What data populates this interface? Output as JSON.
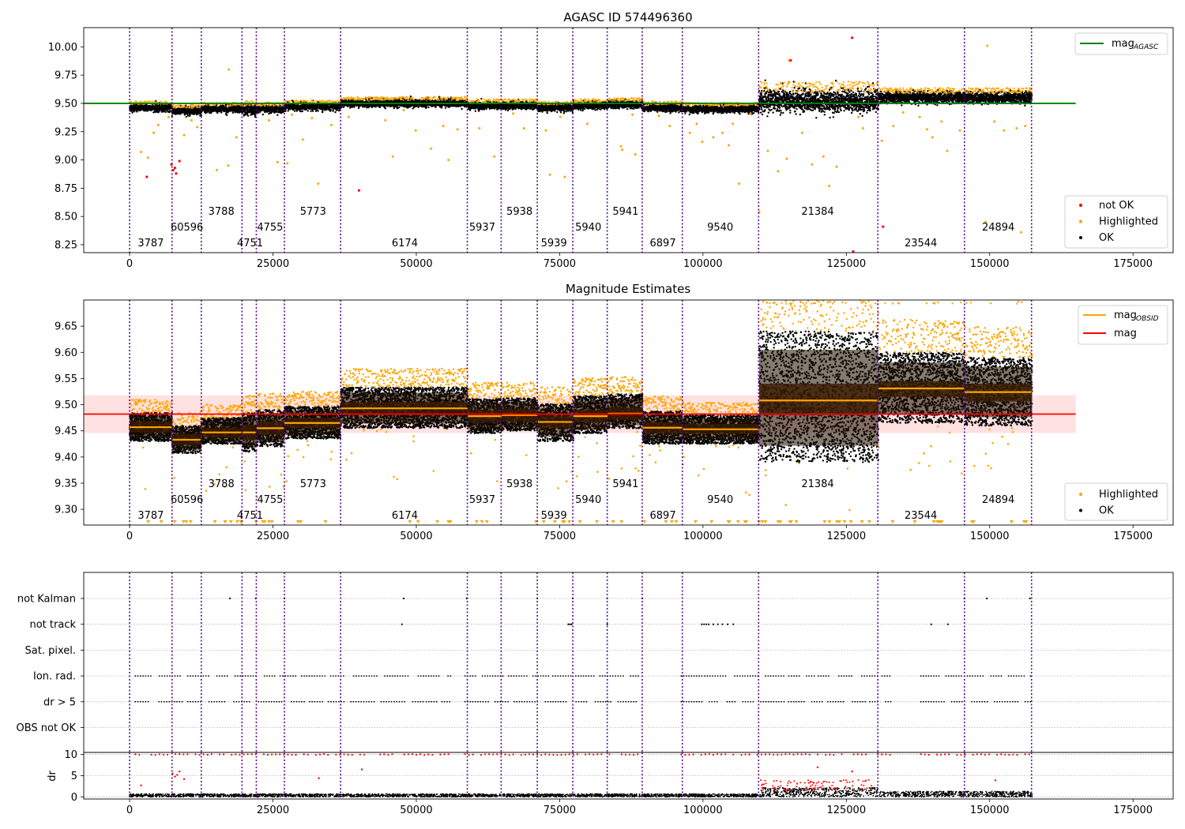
{
  "chart_data": [
    {
      "type": "scatter",
      "title": "AGASC ID 574496360",
      "xlim": [
        -8000,
        182000
      ],
      "ylim": [
        8.18,
        10.17
      ],
      "xticks": [
        0,
        25000,
        50000,
        75000,
        100000,
        125000,
        150000,
        175000
      ],
      "yticks": [
        8.25,
        8.5,
        8.75,
        9.0,
        9.25,
        9.5,
        9.75,
        10.0
      ],
      "ytick_labels": [
        "8.25",
        "8.50",
        "8.75",
        "9.00",
        "9.25",
        "9.50",
        "9.75",
        "10.00"
      ],
      "hline": {
        "y": 9.5,
        "xmax": 165000,
        "color": "#008000"
      },
      "series_colors": {
        "highlighted": "#ffa500",
        "ok": "#000000",
        "not_ok": "#ff0000"
      },
      "segments": [
        {
          "start": 0,
          "end": 7400,
          "level": 9.46,
          "spread": 0.02
        },
        {
          "start": 7400,
          "end": 12500,
          "level": 9.43,
          "spread": 0.02
        },
        {
          "start": 12500,
          "end": 19600,
          "level": 9.45,
          "spread": 0.02
        },
        {
          "start": 19600,
          "end": 22100,
          "level": 9.44,
          "spread": 0.03
        },
        {
          "start": 22100,
          "end": 27000,
          "level": 9.45,
          "spread": 0.02
        },
        {
          "start": 27000,
          "end": 36800,
          "level": 9.47,
          "spread": 0.02
        },
        {
          "start": 36800,
          "end": 59000,
          "level": 9.5,
          "spread": 0.02
        },
        {
          "start": 59000,
          "end": 64900,
          "level": 9.48,
          "spread": 0.02
        },
        {
          "start": 64900,
          "end": 71200,
          "level": 9.48,
          "spread": 0.02
        },
        {
          "start": 71200,
          "end": 77400,
          "level": 9.46,
          "spread": 0.02
        },
        {
          "start": 77400,
          "end": 83400,
          "level": 9.48,
          "spread": 0.02
        },
        {
          "start": 83400,
          "end": 89500,
          "level": 9.49,
          "spread": 0.02
        },
        {
          "start": 89500,
          "end": 96500,
          "level": 9.46,
          "spread": 0.02
        },
        {
          "start": 96500,
          "end": 109800,
          "level": 9.45,
          "spread": 0.02
        },
        {
          "start": 109800,
          "end": 130600,
          "level": 9.52,
          "spread": 0.06
        },
        {
          "start": 130600,
          "end": 145600,
          "level": 9.55,
          "spread": 0.03
        },
        {
          "start": 145600,
          "end": 157400,
          "level": 9.55,
          "spread": 0.03
        }
      ],
      "highlight_points": [
        [
          2000,
          9.07
        ],
        [
          3200,
          9.02
        ],
        [
          4200,
          9.24
        ],
        [
          5000,
          9.31
        ],
        [
          6800,
          9.38
        ],
        [
          9500,
          9.22
        ],
        [
          10800,
          9.35
        ],
        [
          11800,
          9.29
        ],
        [
          15200,
          8.91
        ],
        [
          17200,
          8.95
        ],
        [
          17300,
          9.8
        ],
        [
          18600,
          9.2
        ],
        [
          24300,
          9.35
        ],
        [
          25800,
          8.98
        ],
        [
          27500,
          8.97
        ],
        [
          28300,
          9.4
        ],
        [
          30200,
          9.18
        ],
        [
          31800,
          9.37
        ],
        [
          32900,
          8.79
        ],
        [
          35200,
          9.31
        ],
        [
          38200,
          9.38
        ],
        [
          44600,
          9.35
        ],
        [
          45900,
          9.03
        ],
        [
          47800,
          9.44
        ],
        [
          49900,
          9.26
        ],
        [
          52600,
          9.1
        ],
        [
          54700,
          9.3
        ],
        [
          55600,
          9.0
        ],
        [
          57200,
          9.27
        ],
        [
          61000,
          9.28
        ],
        [
          63600,
          9.03
        ],
        [
          66900,
          9.41
        ],
        [
          68800,
          9.28
        ],
        [
          72600,
          9.26
        ],
        [
          73300,
          8.87
        ],
        [
          75100,
          9.38
        ],
        [
          75900,
          8.85
        ],
        [
          79800,
          9.32
        ],
        [
          85700,
          9.12
        ],
        [
          85900,
          9.09
        ],
        [
          87700,
          9.4
        ],
        [
          88200,
          9.05
        ],
        [
          92300,
          9.39
        ],
        [
          94200,
          9.3
        ],
        [
          97700,
          9.24
        ],
        [
          98900,
          9.32
        ],
        [
          99900,
          9.16
        ],
        [
          101800,
          9.2
        ],
        [
          103400,
          9.24
        ],
        [
          104500,
          9.13
        ],
        [
          105200,
          9.32
        ],
        [
          106300,
          8.79
        ],
        [
          108300,
          9.41
        ],
        [
          109800,
          8.54
        ],
        [
          111300,
          9.08
        ],
        [
          113100,
          8.9
        ],
        [
          114600,
          9.01
        ],
        [
          115000,
          9.88
        ],
        [
          117300,
          9.24
        ],
        [
          119000,
          8.96
        ],
        [
          121000,
          9.03
        ],
        [
          122000,
          8.77
        ],
        [
          123300,
          8.94
        ],
        [
          127100,
          9.38
        ],
        [
          127900,
          9.28
        ],
        [
          131200,
          9.17
        ],
        [
          133200,
          9.3
        ],
        [
          134900,
          9.42
        ],
        [
          137800,
          9.38
        ],
        [
          139100,
          9.27
        ],
        [
          140000,
          9.2
        ],
        [
          141600,
          9.34
        ],
        [
          142600,
          9.08
        ],
        [
          144800,
          9.26
        ],
        [
          149600,
          10.01
        ],
        [
          150800,
          9.34
        ],
        [
          152500,
          9.26
        ],
        [
          154700,
          9.28
        ],
        [
          155500,
          8.36
        ],
        [
          156200,
          9.3
        ],
        [
          149300,
          8.45
        ]
      ],
      "notok_points": [
        [
          3000,
          8.85
        ],
        [
          7300,
          8.96
        ],
        [
          7600,
          8.91
        ],
        [
          7900,
          8.93
        ],
        [
          8100,
          8.88
        ],
        [
          8700,
          8.99
        ],
        [
          40000,
          8.73
        ],
        [
          115300,
          9.88
        ],
        [
          126000,
          10.08
        ],
        [
          131400,
          8.41
        ],
        [
          126200,
          8.19
        ]
      ],
      "obs_labels": [
        {
          "text": "3787",
          "x": 3700,
          "row": 3
        },
        {
          "text": "60596",
          "x": 10000,
          "row": 2
        },
        {
          "text": "3788",
          "x": 16000,
          "row": 1
        },
        {
          "text": "4751",
          "x": 21000,
          "row": 3
        },
        {
          "text": "4755",
          "x": 24500,
          "row": 2
        },
        {
          "text": "5773",
          "x": 32000,
          "row": 1
        },
        {
          "text": "6174",
          "x": 48000,
          "row": 3
        },
        {
          "text": "5937",
          "x": 61500,
          "row": 2
        },
        {
          "text": "5938",
          "x": 68000,
          "row": 1
        },
        {
          "text": "5939",
          "x": 74000,
          "row": 3
        },
        {
          "text": "5940",
          "x": 80000,
          "row": 2
        },
        {
          "text": "5941",
          "x": 86500,
          "row": 1
        },
        {
          "text": "6897",
          "x": 93000,
          "row": 3
        },
        {
          "text": "9540",
          "x": 103000,
          "row": 2
        },
        {
          "text": "21384",
          "x": 120000,
          "row": 1
        },
        {
          "text": "23544",
          "x": 138000,
          "row": 3
        },
        {
          "text": "24894",
          "x": 151500,
          "row": 2
        }
      ],
      "legend": [
        {
          "label": "mag",
          "sub": "AGASC",
          "kind": "line",
          "color": "#008000",
          "position": "upper right"
        },
        {
          "label": "not OK",
          "kind": "dot",
          "color": "#ff0000",
          "position": "lower right"
        },
        {
          "label": "Highlighted",
          "kind": "dot",
          "color": "#ffa500",
          "position": "lower right"
        },
        {
          "label": "OK",
          "kind": "dot",
          "color": "#000000",
          "position": "lower right"
        }
      ],
      "grid": false
    },
    {
      "type": "scatter",
      "title": "Magnitude Estimates",
      "xlim": [
        -8000,
        182000
      ],
      "ylim": [
        9.27,
        9.7
      ],
      "xticks": [
        0,
        25000,
        50000,
        75000,
        100000,
        125000,
        150000,
        175000
      ],
      "yticks": [
        9.3,
        9.35,
        9.4,
        9.45,
        9.5,
        9.55,
        9.6,
        9.65
      ],
      "ytick_labels": [
        "9.30",
        "9.35",
        "9.40",
        "9.45",
        "9.50",
        "9.55",
        "9.60",
        "9.65"
      ],
      "hline": {
        "y": 9.482,
        "xmax": 165000,
        "color": "#ff0000"
      },
      "band": {
        "y0": 9.446,
        "y1": 9.518,
        "color": "#ffdede"
      },
      "segments": [
        {
          "start": 0,
          "end": 7400,
          "median": 9.457,
          "q1": 9.447,
          "q3": 9.468,
          "lo": 9.43,
          "hi": 9.485
        },
        {
          "start": 7400,
          "end": 12500,
          "median": 9.433,
          "q1": 9.423,
          "q3": 9.444,
          "lo": 9.407,
          "hi": 9.46
        },
        {
          "start": 12500,
          "end": 19600,
          "median": 9.447,
          "q1": 9.437,
          "q3": 9.456,
          "lo": 9.425,
          "hi": 9.475
        },
        {
          "start": 19600,
          "end": 22100,
          "median": 9.447,
          "q1": 9.432,
          "q3": 9.462,
          "lo": 9.41,
          "hi": 9.485
        },
        {
          "start": 22100,
          "end": 27000,
          "median": 9.455,
          "q1": 9.443,
          "q3": 9.468,
          "lo": 9.42,
          "hi": 9.49
        },
        {
          "start": 27000,
          "end": 36800,
          "median": 9.465,
          "q1": 9.455,
          "q3": 9.475,
          "lo": 9.435,
          "hi": 9.497
        },
        {
          "start": 36800,
          "end": 59000,
          "median": 9.493,
          "q1": 9.48,
          "q3": 9.505,
          "lo": 9.455,
          "hi": 9.533
        },
        {
          "start": 59000,
          "end": 64900,
          "median": 9.478,
          "q1": 9.466,
          "q3": 9.49,
          "lo": 9.445,
          "hi": 9.512
        },
        {
          "start": 64900,
          "end": 71200,
          "median": 9.48,
          "q1": 9.468,
          "q3": 9.492,
          "lo": 9.45,
          "hi": 9.513
        },
        {
          "start": 71200,
          "end": 77400,
          "median": 9.467,
          "q1": 9.455,
          "q3": 9.48,
          "lo": 9.43,
          "hi": 9.502
        },
        {
          "start": 77400,
          "end": 83400,
          "median": 9.478,
          "q1": 9.466,
          "q3": 9.49,
          "lo": 9.445,
          "hi": 9.517
        },
        {
          "start": 83400,
          "end": 89500,
          "median": 9.483,
          "q1": 9.471,
          "q3": 9.495,
          "lo": 9.455,
          "hi": 9.52
        },
        {
          "start": 89500,
          "end": 96500,
          "median": 9.456,
          "q1": 9.445,
          "q3": 9.467,
          "lo": 9.425,
          "hi": 9.488
        },
        {
          "start": 96500,
          "end": 109800,
          "median": 9.453,
          "q1": 9.444,
          "q3": 9.463,
          "lo": 9.425,
          "hi": 9.48
        },
        {
          "start": 109800,
          "end": 130600,
          "median": 9.508,
          "q1": 9.48,
          "q3": 9.54,
          "lo": 9.39,
          "hi": 9.64
        },
        {
          "start": 130600,
          "end": 145600,
          "median": 9.531,
          "q1": 9.515,
          "q3": 9.545,
          "lo": 9.465,
          "hi": 9.6
        },
        {
          "start": 145600,
          "end": 157400,
          "median": 9.524,
          "q1": 9.506,
          "q3": 9.54,
          "lo": 9.46,
          "hi": 9.59
        }
      ],
      "series_colors": {
        "median": "#ffa500",
        "box": "#1f1000",
        "highlighted": "#ffa500",
        "ok": "#000000"
      },
      "obs_labels": [
        {
          "text": "3787",
          "x": 3700,
          "row": 3
        },
        {
          "text": "60596",
          "x": 10000,
          "row": 2
        },
        {
          "text": "3788",
          "x": 16000,
          "row": 1
        },
        {
          "text": "4751",
          "x": 21000,
          "row": 3
        },
        {
          "text": "4755",
          "x": 24500,
          "row": 2
        },
        {
          "text": "5773",
          "x": 32000,
          "row": 1
        },
        {
          "text": "6174",
          "x": 48000,
          "row": 3
        },
        {
          "text": "5937",
          "x": 61500,
          "row": 2
        },
        {
          "text": "5938",
          "x": 68000,
          "row": 1
        },
        {
          "text": "5939",
          "x": 74000,
          "row": 3
        },
        {
          "text": "5940",
          "x": 80000,
          "row": 2
        },
        {
          "text": "5941",
          "x": 86500,
          "row": 1
        },
        {
          "text": "6897",
          "x": 93000,
          "row": 3
        },
        {
          "text": "9540",
          "x": 103000,
          "row": 2
        },
        {
          "text": "21384",
          "x": 120000,
          "row": 1
        },
        {
          "text": "23544",
          "x": 138000,
          "row": 3
        },
        {
          "text": "24894",
          "x": 151500,
          "row": 2
        }
      ],
      "legend": [
        {
          "label": "mag",
          "sub": "OBSID",
          "kind": "line",
          "color": "#ffa500",
          "position": "upper right"
        },
        {
          "label": "mag",
          "sub": "",
          "kind": "line",
          "color": "#ff0000",
          "position": "upper right"
        },
        {
          "label": "Highlighted",
          "kind": "dot",
          "color": "#ffa500",
          "position": "lower right"
        },
        {
          "label": "OK",
          "kind": "dot",
          "color": "#000000",
          "position": "lower right"
        }
      ],
      "grid": false
    },
    {
      "type": "scatter",
      "title": "",
      "xlim": [
        -8000,
        182000
      ],
      "categories": [
        "not Kalman",
        "not track",
        "Sat. pixel.",
        "Ion. rad.",
        "dr > 5",
        "OBS not OK"
      ],
      "flags": {
        "not Kalman": [
          17500,
          22000,
          27000,
          47800,
          58800,
          64800,
          71100,
          77300,
          83300,
          89400,
          145600,
          149500,
          157000
        ],
        "not track": [
          47500,
          76500,
          76800,
          77100,
          83300,
          99800,
          100200,
          100600,
          101000,
          101800,
          102600,
          103400,
          104300,
          105300,
          139800,
          142700
        ],
        "Sat. pixel.": [],
        "Ion. rad.": [
          [
            1000,
            56000
          ],
          [
            58500,
            89000
          ],
          [
            96200,
            133000
          ],
          [
            138000,
            157300
          ]
        ],
        "dr > 5": [
          [
            1000,
            56000
          ],
          [
            58500,
            89000
          ],
          [
            96200,
            133000
          ],
          [
            138000,
            157300
          ]
        ],
        "OBS not OK": []
      },
      "dr_panel": {
        "ylabel": "dr",
        "yticks": [
          0,
          5,
          10
        ],
        "ylim": [
          -0.5,
          10.5
        ],
        "clip_value": 10
      },
      "series_colors": {
        "flag": "#000000",
        "dr_ok": "#000000",
        "dr_clipped": "#ff0000"
      },
      "xticks": [
        0,
        25000,
        50000,
        75000,
        100000,
        125000,
        150000,
        175000
      ],
      "grid": true
    }
  ],
  "obsid_boundaries": [
    0,
    7400,
    12500,
    19600,
    22100,
    27000,
    36800,
    58900,
    64800,
    71100,
    77300,
    83300,
    89400,
    96400,
    109700,
    130500,
    145600,
    157300
  ]
}
